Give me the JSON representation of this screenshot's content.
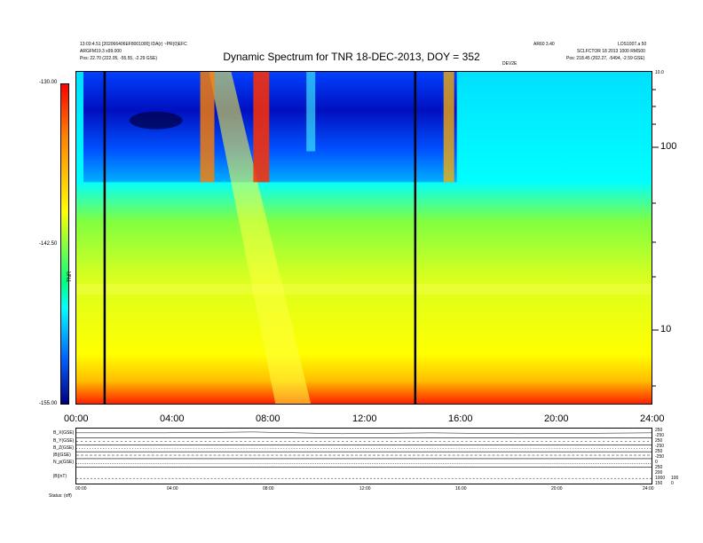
{
  "header": {
    "left_line1": "13:03:4.51 [202066406EF8001000] IDA(r) ~PR(0)EFC",
    "left_line2": "ARGFM19.3 x99.000",
    "left_line3": "Pos: 22.70 (222.05, -55.55, -2.29 GSE)",
    "center_sub": "DEV2E",
    "right_line1": "AR60 3.40",
    "right_line2": "LOS1007.a 50",
    "right_line3": "SCLFCTOR 18 2013 1000 RMS00",
    "right_line4": "Pos: 218.45 (202.27, -5494, -2.59 GSE)",
    "right_corner": "10.0"
  },
  "chart_data": {
    "type": "heatmap",
    "title": "Dynamic Spectrum for TNR 18-DEC-2013, DOY = 352",
    "x_ticks": [
      "00:00",
      "04:00",
      "08:00",
      "12:00",
      "16:00",
      "20:00",
      "24:00"
    ],
    "x_range_hours": [
      0,
      24
    ],
    "y_right_ticks": [
      "100",
      "10"
    ],
    "y_right_scale": "log",
    "colorbar_ticks": [
      "-130.00",
      "-142.50",
      "-155.00"
    ],
    "colorbar_label": "TNR",
    "colorbar_range": [
      -155.0,
      -130.0
    ],
    "vertical_lines_hours": [
      1.2,
      14.2
    ]
  },
  "panels": {
    "labels": [
      "B_X(GSE)",
      "B_Y(GSE)",
      "B_Z(GSE)",
      "|B|(GSE)",
      "N_p(GSE)",
      "|B|(nT)"
    ],
    "right_values": [
      "250",
      "-250",
      "250",
      "-250",
      "250",
      "-250",
      "0",
      "250",
      "200",
      "1000",
      "150",
      "100",
      "0"
    ],
    "x_ticks": [
      "00:00",
      "04:00",
      "08:00",
      "12:00",
      "16:00",
      "20:00",
      "24:00"
    ],
    "footer": "Status: (off)"
  },
  "colors": {
    "background": "#ffffff",
    "frame": "#000000"
  }
}
